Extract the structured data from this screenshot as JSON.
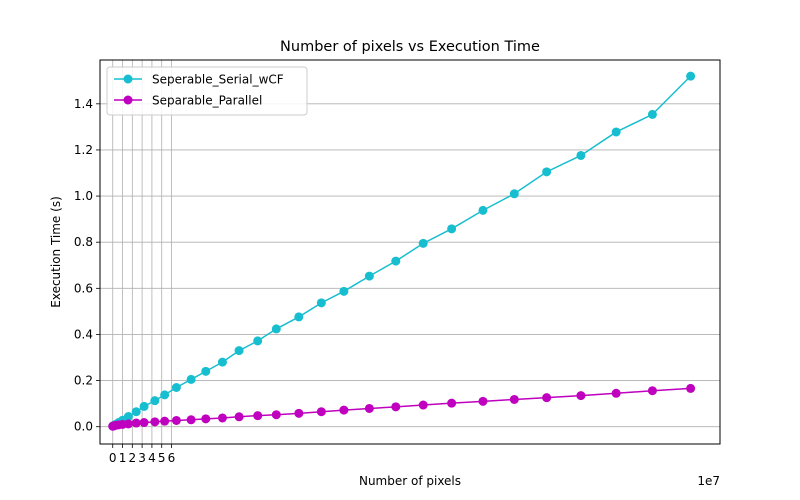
{
  "chart_data": {
    "type": "line",
    "title": "Number of pixels vs Execution Time",
    "xlabel": "Number of pixels",
    "ylabel": "Execution Time (s)",
    "x_offset_label": "1e7",
    "xlim": [
      -1.3,
      62.0
    ],
    "ylim": [
      -0.075,
      1.59
    ],
    "x_ticks": [
      0,
      1,
      2,
      3,
      4,
      5,
      6
    ],
    "x_tick_labels": [
      "0",
      "1",
      "2",
      "3",
      "4",
      "5",
      "6"
    ],
    "y_ticks": [
      0.0,
      0.2,
      0.4,
      0.6,
      0.8,
      1.0,
      1.2,
      1.4
    ],
    "y_tick_labels": [
      "0.0",
      "0.2",
      "0.4",
      "0.6",
      "0.8",
      "1.0",
      "1.2",
      "1.4"
    ],
    "grid": true,
    "legend_position": "top-left",
    "x": [
      0.0,
      0.05,
      0.12,
      0.3,
      0.6,
      1.0,
      1.6,
      2.4,
      3.2,
      4.3,
      5.3,
      6.5,
      8.0,
      9.5,
      11.2,
      12.9,
      14.8,
      16.7,
      19.0,
      21.3,
      23.6,
      26.2,
      28.9,
      31.7,
      34.6,
      37.8,
      41.0,
      44.3,
      47.8,
      51.4,
      55.1,
      59.0
    ],
    "series": [
      {
        "name": "Seperable_Serial_wCF",
        "color": "#17becf",
        "values": [
          0.002,
          0.004,
          0.006,
          0.01,
          0.018,
          0.028,
          0.044,
          0.065,
          0.088,
          0.113,
          0.138,
          0.17,
          0.205,
          0.24,
          0.28,
          0.33,
          0.372,
          0.424,
          0.476,
          0.537,
          0.587,
          0.653,
          0.718,
          0.795,
          0.858,
          0.938,
          1.01,
          1.105,
          1.176,
          1.278,
          1.354,
          1.52
        ]
      },
      {
        "name": "Separable_Parallel",
        "color": "#bf00bf",
        "values": [
          0.002,
          0.003,
          0.004,
          0.006,
          0.008,
          0.01,
          0.012,
          0.016,
          0.018,
          0.021,
          0.024,
          0.027,
          0.03,
          0.034,
          0.038,
          0.043,
          0.048,
          0.052,
          0.058,
          0.065,
          0.072,
          0.079,
          0.086,
          0.094,
          0.102,
          0.11,
          0.118,
          0.126,
          0.135,
          0.145,
          0.156,
          0.166
        ]
      }
    ]
  }
}
